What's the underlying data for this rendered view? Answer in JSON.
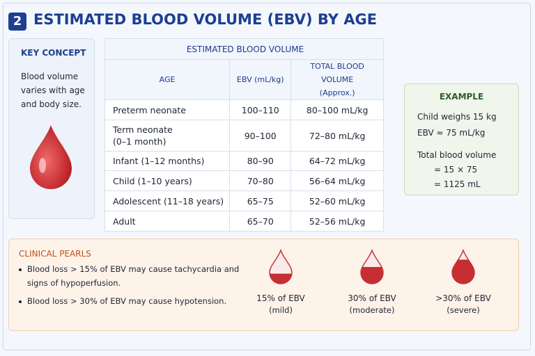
{
  "header": {
    "number": "2",
    "title": "ESTIMATED BLOOD VOLUME (EBV) BY AGE"
  },
  "key_concept": {
    "title": "KEY CONCEPT",
    "text": [
      "Blood volume",
      "varies with age",
      "and body size."
    ]
  },
  "table": {
    "title": "ESTIMATED BLOOD VOLUME",
    "header": [
      [
        "AGE"
      ],
      [
        "EBV (mL/kg)"
      ],
      [
        "TOTAL BLOOD VOLUME",
        "(Approx.)"
      ]
    ],
    "rows": [
      [
        [
          "Preterm neonate"
        ],
        [
          "100–110"
        ],
        [
          "80–100 mL/kg"
        ]
      ],
      [
        [
          "Term neonate",
          "(0–1 month)"
        ],
        [
          "90–100"
        ],
        [
          "72–80 mL/kg"
        ]
      ],
      [
        [
          "Infant (1–12 months)"
        ],
        [
          "80–90"
        ],
        [
          "64–72 mL/kg"
        ]
      ],
      [
        [
          "Child (1–10 years)"
        ],
        [
          "70–80"
        ],
        [
          "56–64 mL/kg"
        ]
      ],
      [
        [
          "Adolescent (11–18 years)"
        ],
        [
          "65–75"
        ],
        [
          "52–60 mL/kg"
        ]
      ],
      [
        [
          "Adult"
        ],
        [
          "65–70"
        ],
        [
          "52–56 mL/kg"
        ]
      ]
    ]
  },
  "example": {
    "title": "EXAMPLE",
    "lines": [
      "Child weighs 15 kg",
      "EBV ≈ 75 mL/kg",
      "Total blood volume",
      "= 15 × 75",
      "= 1125 mL"
    ]
  },
  "clinical_pearls": {
    "title": "CLINICAL PEARLS",
    "bullets": [
      [
        "Blood loss > 15% of EBV may cause tachycardia and",
        "signs of hypoperfusion."
      ],
      [
        "Blood loss > 30% of EBV may cause hypotension."
      ]
    ],
    "levels": [
      {
        "label": "15% of EBV",
        "note": "(mild)"
      },
      {
        "label": "30% of EBV",
        "note": "(moderate)"
      },
      {
        "label": ">30% of EBV",
        "note": "(severe)"
      }
    ]
  }
}
